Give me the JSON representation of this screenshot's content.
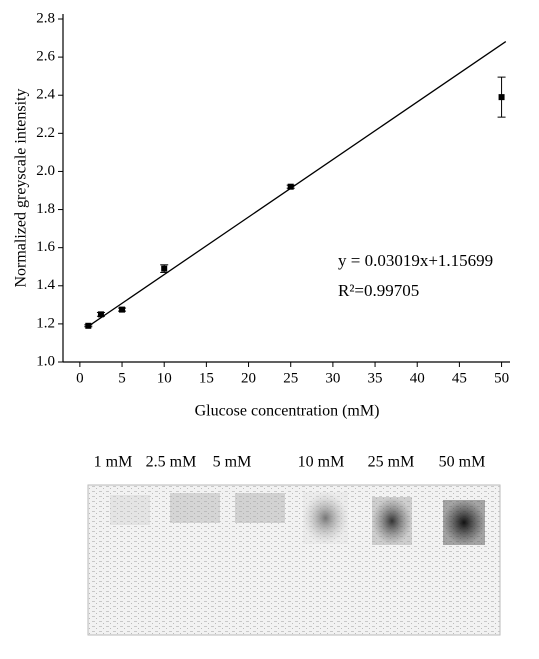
{
  "chart_data": {
    "type": "scatter",
    "x_label": "Glucose concentration (mM)",
    "y_label": "Normalized greyscale intensity",
    "xlim": [
      -2,
      51
    ],
    "xticks": [
      0,
      5,
      10,
      15,
      20,
      25,
      30,
      35,
      40,
      45,
      50
    ],
    "ylim": [
      1.0,
      2.8
    ],
    "yticks": [
      {
        "value": 1.0,
        "label": "1.0"
      },
      1.2,
      1.4,
      1.6,
      1.8,
      {
        "value": 2.0,
        "label": "2.0"
      },
      2.2,
      2.4,
      2.6,
      2.8
    ],
    "series": [
      {
        "color": "#000000",
        "x": [
          1,
          2.5,
          5,
          10,
          25,
          50
        ],
        "values": [
          1.19,
          1.25,
          1.275,
          1.49,
          1.92,
          2.39
        ],
        "errors": [
          0.005,
          0.01,
          0.008,
          0.02,
          0.008,
          0.105
        ]
      }
    ],
    "fit": {
      "slope": 0.03019,
      "intercept": 1.15699,
      "xrange": [
        1,
        50.5
      ],
      "equation": "y = 0.03019x+1.15699",
      "r2": "R²=0.99705"
    }
  },
  "strip": {
    "labels": [
      "1 mM",
      "2.5 mM",
      "5 mM",
      "10 mM",
      "25 mM",
      "50 mM"
    ]
  }
}
